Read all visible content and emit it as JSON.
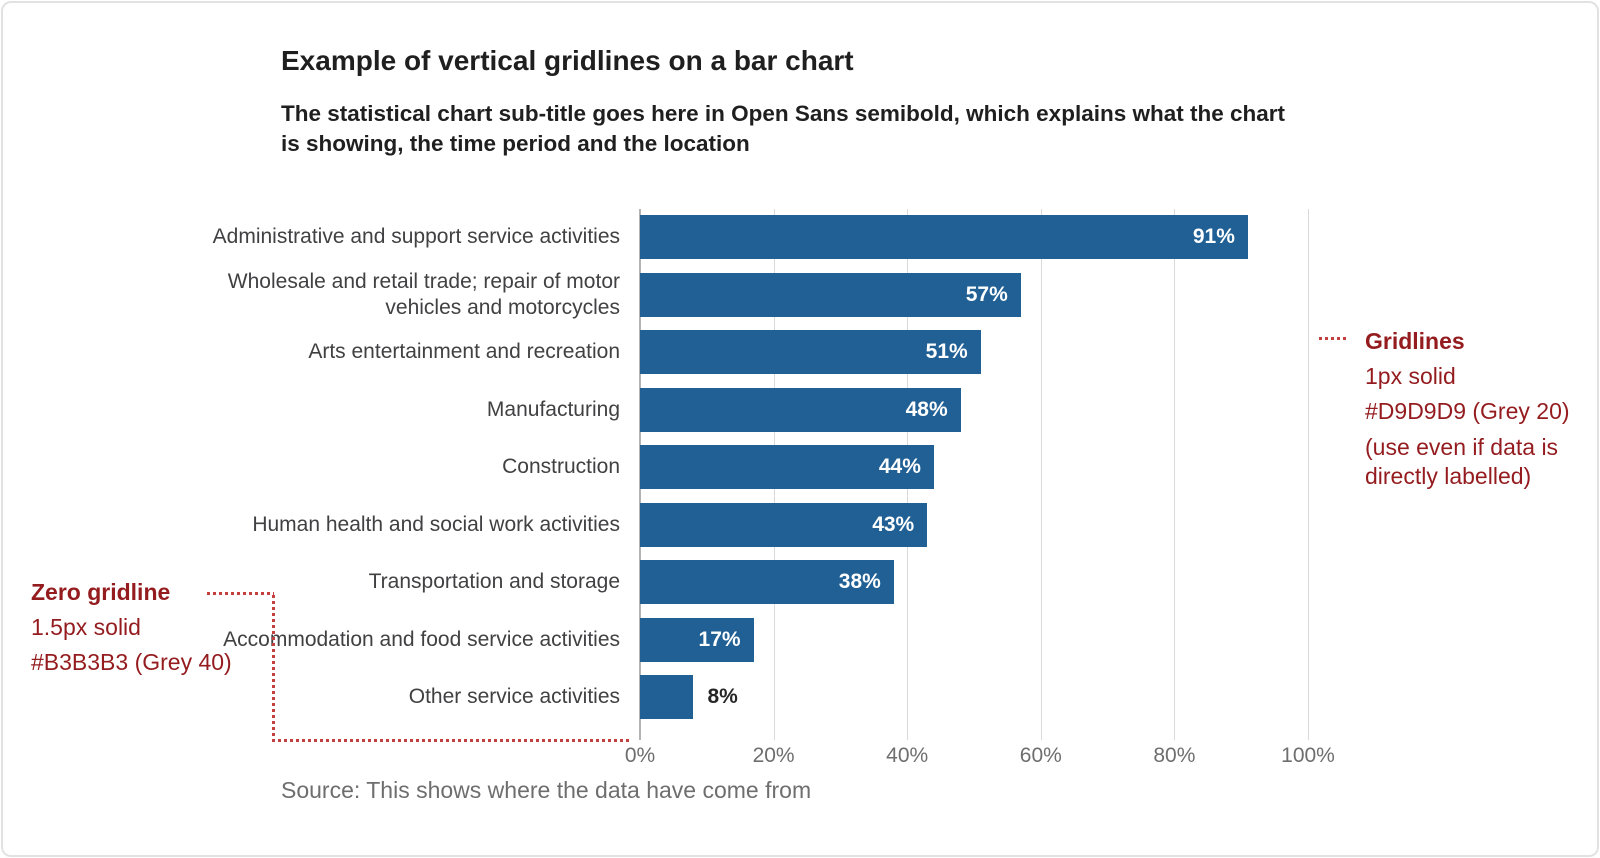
{
  "chart_data": {
    "type": "bar",
    "orientation": "horizontal",
    "title": "Example of vertical gridlines on a bar chart",
    "subtitle": "The statistical chart sub-title goes here in Open Sans semibold, which explains what the chart is showing, the time period and the location",
    "source": "Source: This shows where the data have come from",
    "categories": [
      "Administrative and support service activities",
      "Wholesale and retail trade; repair of motor vehicles and motorcycles",
      "Arts entertainment and recreation",
      "Manufacturing",
      "Construction",
      "Human health and social work activities",
      "Transportation and storage",
      "Accommodation and food service activities",
      "Other service activities"
    ],
    "values": [
      91,
      57,
      51,
      48,
      44,
      43,
      38,
      17,
      8
    ],
    "value_labels": [
      "91%",
      "57%",
      "51%",
      "48%",
      "44%",
      "43%",
      "38%",
      "17%",
      "8%"
    ],
    "x_ticks": [
      "0%",
      "20%",
      "40%",
      "60%",
      "80%",
      "100%"
    ],
    "xlim": [
      0,
      100
    ],
    "grid": "vertical gridlines only",
    "legend": "none",
    "colors": {
      "bar": "#206095",
      "gridline": "#D9D9D9",
      "zero_gridline": "#B3B3B3",
      "annotation_text": "#941C1F",
      "leader_dots": "#C4403F"
    }
  },
  "annotations": {
    "gridlines": {
      "heading": "Gridlines",
      "line1": "1px solid",
      "line2": "#D9D9D9 (Grey 20)",
      "line3": "(use even if data is directly labelled)"
    },
    "zero_gridline": {
      "heading": "Zero gridline",
      "line1": "1.5px solid",
      "line2": "#B3B3B3 (Grey 40)"
    }
  }
}
